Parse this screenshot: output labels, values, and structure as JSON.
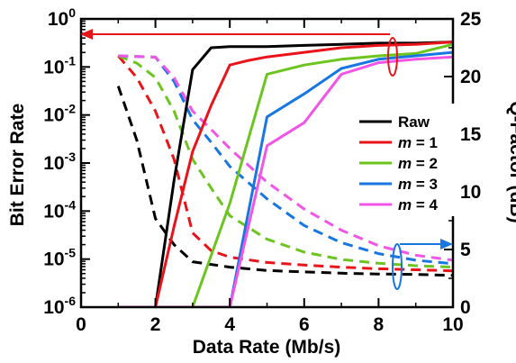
{
  "chart_data": {
    "type": "line",
    "xlabel": "Data Rate (Mb/s)",
    "ylabel_left": "Bit Error Rate",
    "ylabel_right": "Q-Factor (dB)",
    "xlim": [
      0,
      10
    ],
    "ylim_left": [
      1e-06,
      1
    ],
    "ylim_right": [
      0,
      25
    ],
    "yscale_left": "log",
    "x_ticks": [
      "0",
      "2",
      "4",
      "6",
      "8",
      "10"
    ],
    "y_left_ticks": [
      {
        "base": "10",
        "exp": "0",
        "value": 1
      },
      {
        "base": "10",
        "exp": "-1",
        "value": 0.1
      },
      {
        "base": "10",
        "exp": "-2",
        "value": 0.01
      },
      {
        "base": "10",
        "exp": "-3",
        "value": 0.001
      },
      {
        "base": "10",
        "exp": "-4",
        "value": 0.0001
      },
      {
        "base": "10",
        "exp": "-5",
        "value": 1e-05
      },
      {
        "base": "10",
        "exp": "-6",
        "value": 1e-06
      }
    ],
    "y_right_ticks": [
      "0",
      "5",
      "10",
      "15",
      "20",
      "25"
    ],
    "legend": {
      "placement": "center-right",
      "entries": [
        {
          "label": "Raw",
          "m": "",
          "color": "#000000"
        },
        {
          "label": "",
          "m": "m",
          "value": "1",
          "color": "#e8141a"
        },
        {
          "label": "",
          "m": "m",
          "value": "2",
          "color": "#6cc51f"
        },
        {
          "label": "",
          "m": "m",
          "value": "3",
          "color": "#1776e0"
        },
        {
          "label": "",
          "m": "m",
          "value": "4",
          "color": "#f055e6"
        }
      ]
    },
    "ber_series": [
      {
        "color": "#000000",
        "x": [
          1,
          1.5,
          2,
          2.5,
          3,
          4,
          5,
          6,
          7,
          8,
          9,
          10
        ],
        "y": [
          0.04,
          0.003,
          7e-05,
          2e-05,
          8.8e-06,
          6.8e-06,
          5.8e-06,
          5.4e-06,
          5.1e-06,
          4.9e-06,
          4.8e-06,
          4.6e-06
        ]
      },
      {
        "color": "#e8141a",
        "x": [
          1,
          1.5,
          2,
          2.5,
          3,
          3.5,
          4,
          5,
          6,
          7,
          8,
          9,
          10
        ],
        "y": [
          0.17,
          0.06,
          0.012,
          0.0012,
          3.5e-05,
          1.5e-05,
          1.1e-05,
          8.5e-06,
          7.5e-06,
          6.8e-06,
          6.3e-06,
          6e-06,
          5.7e-06
        ]
      },
      {
        "color": "#6cc51f",
        "x": [
          1,
          1.5,
          2,
          2.5,
          3,
          3.5,
          4,
          5,
          6,
          7,
          8,
          9,
          10
        ],
        "y": [
          0.17,
          0.12,
          0.06,
          0.012,
          0.0012,
          0.0003,
          8e-05,
          2.6e-05,
          1.4e-05,
          9.8e-06,
          8.2e-06,
          7.3e-06,
          6.8e-06
        ]
      },
      {
        "color": "#1776e0",
        "x": [
          1,
          1.5,
          2,
          2.5,
          3,
          3.5,
          4,
          5,
          6,
          7,
          8,
          9,
          10
        ],
        "y": [
          0.17,
          0.165,
          0.16,
          0.05,
          0.008,
          0.0027,
          0.00085,
          0.00018,
          5e-05,
          2.2e-05,
          1.3e-05,
          9.5e-06,
          8e-06
        ]
      },
      {
        "color": "#f055e6",
        "x": [
          1,
          1.5,
          2,
          2.5,
          3,
          3.5,
          4,
          5,
          6,
          7,
          8,
          9,
          10
        ],
        "y": [
          0.17,
          0.165,
          0.16,
          0.06,
          0.012,
          0.005,
          0.002,
          0.0004,
          0.00011,
          4e-05,
          1.9e-05,
          1.2e-05,
          9.5e-06
        ]
      }
    ],
    "q_series": [
      {
        "color": "#000000",
        "x": [
          1,
          2,
          2.5,
          3,
          3.5,
          4,
          5,
          6,
          7,
          8,
          9,
          10
        ],
        "y": [
          0,
          0,
          11,
          20.6,
          22.5,
          22.6,
          22.6,
          22.7,
          22.8,
          22.9,
          22.9,
          23.0
        ]
      },
      {
        "color": "#e8141a",
        "x": [
          1,
          2,
          2.5,
          3,
          3.5,
          4,
          4.5,
          5,
          6,
          7,
          8,
          9,
          10
        ],
        "y": [
          0,
          0,
          7,
          13.5,
          17.5,
          21,
          21.4,
          21.7,
          22.1,
          22.5,
          22.7,
          22.8,
          23.0
        ]
      },
      {
        "color": "#6cc51f",
        "x": [
          1,
          3,
          4,
          5,
          6,
          7,
          8,
          9,
          10
        ],
        "y": [
          0,
          0,
          9,
          20.2,
          21.0,
          21.5,
          21.8,
          22.0,
          22.8
        ]
      },
      {
        "color": "#1776e0",
        "x": [
          1,
          4,
          5,
          6,
          7,
          8,
          9,
          10
        ],
        "y": [
          0,
          0,
          16.5,
          18.5,
          20.7,
          21.5,
          21.8,
          22.1
        ]
      },
      {
        "color": "#f055e6",
        "x": [
          1,
          4,
          5,
          6,
          7,
          8,
          9,
          10
        ],
        "y": [
          0,
          0,
          14,
          16,
          20.2,
          21.2,
          21.5,
          21.7
        ]
      }
    ],
    "annotations": [
      {
        "type": "arrow",
        "axis": "left",
        "color": "#e8141a"
      },
      {
        "type": "arrow",
        "axis": "right",
        "color": "#1776e0"
      }
    ]
  }
}
